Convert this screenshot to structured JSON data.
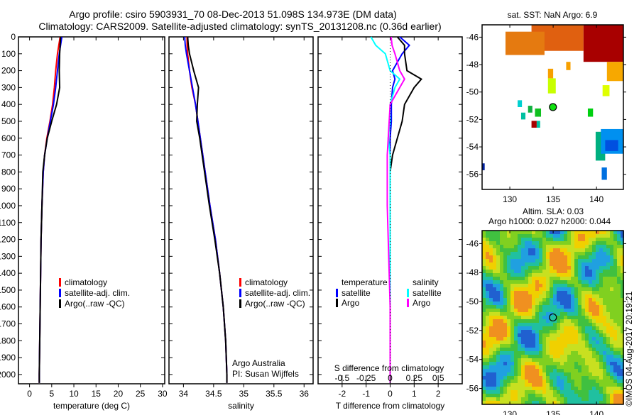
{
  "title_line1": "Argo profile: csiro 5903931_70 08-Dec-2013 51.098S 134.973E (DM data)",
  "title_line2": "Climatology: CARS2009. Satellite-adjusted climatology: synTS_20131208.nc (0.36d earlier)",
  "credit": "©IMOS 04-Aug-2017 20:19:21",
  "colors": {
    "climatology": "#ff0000",
    "satellite": "#0000ff",
    "argo": "#000000",
    "sal_satellite": "#00ffff",
    "sal_argo": "#ff00ff"
  },
  "chart_data": [
    {
      "type": "line",
      "xlabel": "temperature (deg C)",
      "ylabel": "",
      "xlim": [
        -2.5,
        30.5
      ],
      "ylim": [
        2055,
        0
      ],
      "xticks": [
        0,
        5,
        10,
        15,
        20,
        25,
        30
      ],
      "yticks": [
        0,
        100,
        200,
        300,
        400,
        500,
        600,
        700,
        800,
        900,
        1000,
        1100,
        1200,
        1300,
        1400,
        1500,
        1600,
        1700,
        1800,
        1900,
        2000
      ],
      "legend": [
        "climatology",
        "satellite-adj. clim.",
        "Argo(..raw -QC)"
      ],
      "depth": [
        0,
        50,
        100,
        200,
        300,
        400,
        500,
        600,
        700,
        800,
        1000,
        1200,
        1400,
        1600,
        1800,
        2000,
        2050
      ],
      "series": [
        {
          "name": "climatology",
          "values": [
            6.9,
            6.6,
            6.3,
            5.9,
            5.6,
            5.2,
            4.6,
            3.9,
            3.4,
            3.1,
            2.8,
            2.6,
            2.5,
            2.4,
            2.3,
            2.2,
            2.2
          ]
        },
        {
          "name": "satellite-adj. clim.",
          "values": [
            7.3,
            7.0,
            6.7,
            6.3,
            5.9,
            5.4,
            4.7,
            4.0,
            3.4,
            3.1,
            2.8,
            2.6,
            2.5,
            2.4,
            2.3,
            2.2,
            2.2
          ]
        },
        {
          "name": "Argo(..raw -QC)",
          "values": [
            7.0,
            6.9,
            6.8,
            6.7,
            6.8,
            6.1,
            5.0,
            4.0,
            3.4,
            3.0,
            2.8,
            2.6,
            2.5,
            2.4,
            2.3,
            2.2,
            2.2
          ]
        }
      ]
    },
    {
      "type": "line",
      "xlabel": "salinity",
      "xlim": [
        33.76,
        36.15
      ],
      "ylim": [
        2055,
        0
      ],
      "xticks": [
        34,
        34.5,
        35,
        35.5,
        36
      ],
      "legend": [
        "climatology",
        "satellite-adj. clim.",
        "Argo(..raw -QC)"
      ],
      "annotation": [
        "Argo Australia",
        "PI: Susan Wijffels"
      ],
      "depth": [
        0,
        50,
        100,
        200,
        300,
        400,
        500,
        600,
        700,
        800,
        1000,
        1200,
        1400,
        1600,
        1800,
        2000,
        2050
      ],
      "series": [
        {
          "name": "climatology",
          "values": [
            34.06,
            34.06,
            34.07,
            34.1,
            34.14,
            34.2,
            34.24,
            34.28,
            34.32,
            34.36,
            34.44,
            34.53,
            34.6,
            34.66,
            34.7,
            34.72,
            34.72
          ]
        },
        {
          "name": "satellite-adj. clim.",
          "values": [
            34.02,
            34.03,
            34.05,
            34.1,
            34.15,
            34.2,
            34.24,
            34.28,
            34.32,
            34.36,
            34.44,
            34.53,
            34.6,
            34.66,
            34.7,
            34.72,
            34.72
          ]
        },
        {
          "name": "Argo(..raw -QC)",
          "values": [
            34.07,
            34.08,
            34.1,
            34.17,
            34.25,
            34.23,
            34.22,
            34.27,
            34.31,
            34.35,
            34.43,
            34.52,
            34.6,
            34.66,
            34.7,
            34.72,
            34.72
          ]
        }
      ]
    },
    {
      "type": "line",
      "xlabel": "T difference from climatology",
      "x2label": "S difference from climatology",
      "xlim": [
        -3,
        3
      ],
      "xticks": [
        -2,
        -1,
        0,
        1,
        2
      ],
      "x2ticks": [
        -0.5,
        -0.25,
        0,
        0.25,
        0.5
      ],
      "x2tick_labels": [
        "-0.5",
        "-0.25",
        "0",
        "0.25",
        "0.5"
      ],
      "ylim": [
        2055,
        0
      ],
      "legend": {
        "temperature": "temperature",
        "salinity": "salinity",
        "t_sat": "satellite",
        "t_argo": "Argo",
        "s_sat": "satellite",
        "s_argo": "Argo"
      },
      "depth": [
        0,
        50,
        100,
        200,
        250,
        300,
        400,
        500,
        600,
        700,
        800,
        1000,
        1200,
        1400,
        1600,
        1800,
        2000,
        2050
      ],
      "series": [
        {
          "name": "T satellite",
          "values": [
            0.4,
            0.8,
            0.5,
            0.1,
            0.2,
            0.1,
            0.05,
            0.05,
            0.0,
            0.0,
            0.0,
            0.0,
            0.0,
            0.0,
            0.0,
            0.0,
            0.0,
            0.0
          ]
        },
        {
          "name": "T Argo",
          "values": [
            0.3,
            0.6,
            0.6,
            0.7,
            1.3,
            1.0,
            0.6,
            0.5,
            0.3,
            0.1,
            0.0,
            0.0,
            0.0,
            0.0,
            0.0,
            0.0,
            0.0,
            0.0
          ]
        },
        {
          "name": "S satellite",
          "values": [
            -0.2,
            -0.15,
            -0.05,
            0.0,
            0.1,
            0.05,
            0.0,
            0.0,
            -0.02,
            0.0,
            0.0,
            0.0,
            0.0,
            0.0,
            0.0,
            0.0,
            0.0,
            0.0
          ]
        },
        {
          "name": "S Argo",
          "values": [
            0.01,
            0.02,
            0.05,
            0.1,
            0.15,
            0.1,
            0.0,
            -0.01,
            -0.02,
            -0.03,
            -0.03,
            -0.03,
            -0.02,
            -0.01,
            0.0,
            0.0,
            0.0,
            0.0
          ]
        }
      ]
    },
    {
      "type": "heatmap",
      "title": "sat. SST: NaN Argo: 6.9",
      "xlim": [
        126.8,
        143.1
      ],
      "ylim": [
        -57.1,
        -45.1
      ],
      "xticks": [
        130,
        135,
        140
      ],
      "yticks": [
        -46,
        -48,
        -50,
        -52,
        -54,
        -56
      ],
      "marker": {
        "lon": 134.973,
        "lat": -51.098,
        "value": 6.9
      },
      "patches": [
        {
          "lon": [
            132.5,
            138.5
          ],
          "lat": [
            -47,
            -45.1
          ],
          "color": "#e06010"
        },
        {
          "lon": [
            129.5,
            134
          ],
          "lat": [
            -47.3,
            -45.6
          ],
          "color": "#e57a10"
        },
        {
          "lon": [
            138.5,
            143.1
          ],
          "lat": [
            -47.8,
            -45.1
          ],
          "color": "#a80000"
        },
        {
          "lon": [
            141.2,
            143.1
          ],
          "lat": [
            -49.2,
            -47.8
          ],
          "color": "#f7a800"
        },
        {
          "lon": [
            136.5,
            137
          ],
          "lat": [
            -48.4,
            -47.8
          ],
          "color": "#f7a000"
        },
        {
          "lon": [
            134.4,
            135
          ],
          "lat": [
            -49,
            -48.3
          ],
          "color": "#f7a000"
        },
        {
          "lon": [
            134.4,
            135.3
          ],
          "lat": [
            -50.1,
            -49
          ],
          "color": "#c8ff00"
        },
        {
          "lon": [
            140.7,
            141.5
          ],
          "lat": [
            -50.3,
            -49.5
          ],
          "color": "#dfff00"
        },
        {
          "lon": [
            130.9,
            131.4
          ],
          "lat": [
            -51.1,
            -50.6
          ],
          "color": "#00d0d0"
        },
        {
          "lon": [
            131.3,
            131.8
          ],
          "lat": [
            -52,
            -51.5
          ],
          "color": "#00c0a0"
        },
        {
          "lon": [
            132.1,
            132.6
          ],
          "lat": [
            -51.5,
            -51
          ],
          "color": "#10b040"
        },
        {
          "lon": [
            132.9,
            133.6
          ],
          "lat": [
            -51.8,
            -51.2
          ],
          "color": "#10c020"
        },
        {
          "lon": [
            132.5,
            133.1
          ],
          "lat": [
            -52.6,
            -52.1
          ],
          "color": "#a80000"
        },
        {
          "lon": [
            133.1,
            133.5
          ],
          "lat": [
            -52.6,
            -52.1
          ],
          "color": "#00c0a0"
        },
        {
          "lon": [
            139,
            139.6
          ],
          "lat": [
            -51.8,
            -51.2
          ],
          "color": "#00d010"
        },
        {
          "lon": [
            139.9,
            141
          ],
          "lat": [
            -55,
            -52.9
          ],
          "color": "#00b080"
        },
        {
          "lon": [
            140.5,
            143.1
          ],
          "lat": [
            -54.5,
            -52.7
          ],
          "color": "#0090f0"
        },
        {
          "lon": [
            141,
            142.5
          ],
          "lat": [
            -54.3,
            -53.5
          ],
          "color": "#0050e0"
        },
        {
          "lon": [
            140.6,
            141.2
          ],
          "lat": [
            -56.4,
            -55.5
          ],
          "color": "#0070e0"
        },
        {
          "lon": [
            126.8,
            127.1
          ],
          "lat": [
            -55.7,
            -55.2
          ],
          "color": "#0020a0"
        }
      ]
    },
    {
      "type": "heatmap",
      "title": "Altim. SLA: 0.03",
      "subtitle": "Argo h1000: 0.027 h2000: 0.044",
      "xlim": [
        126.8,
        143.1
      ],
      "ylim": [
        -57.1,
        -45.1
      ],
      "xticks": [
        130,
        135,
        140
      ],
      "yticks": [
        -46,
        -48,
        -50,
        -52,
        -54,
        -56
      ],
      "marker": {
        "lon": 134.973,
        "lat": -51.098
      }
    }
  ]
}
